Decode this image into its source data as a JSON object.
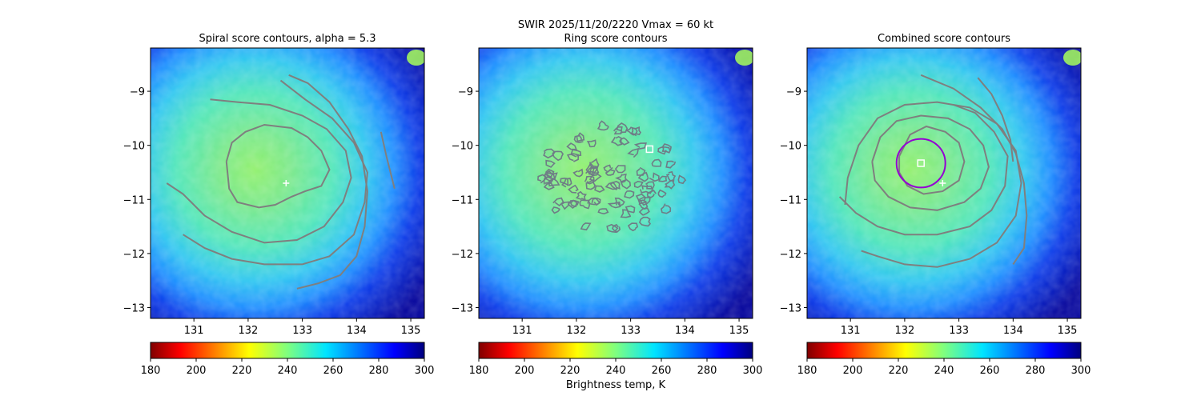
{
  "suptitle_line1": "SWIR  2025/11/20/2220    Vmax = 60 kt",
  "colorbar_label": "Brightness temp, K",
  "colormap": "jet_r",
  "colors": {
    "contour": "#7f7f7f",
    "ring_contour": "#6f7c86",
    "circle": "#9400d3",
    "marker": "#ffffff"
  },
  "chart_data": [
    {
      "type": "heatmap",
      "title": "Spiral score contours, alpha =  5.3",
      "xlim": [
        130.2,
        135.25
      ],
      "ylim": [
        -13.2,
        -8.2
      ],
      "xticks": [
        131,
        132,
        133,
        134,
        135
      ],
      "yticks": [
        -9,
        -10,
        -11,
        -12,
        -13
      ],
      "colorbar": {
        "min": 180,
        "max": 300,
        "ticks": [
          180,
          200,
          220,
          240,
          260,
          280,
          300
        ]
      },
      "contours": [
        [
          [
            131.6,
            -10.3
          ],
          [
            131.7,
            -9.95
          ],
          [
            131.95,
            -9.75
          ],
          [
            132.3,
            -9.62
          ],
          [
            132.8,
            -9.68
          ],
          [
            133.1,
            -9.85
          ],
          [
            133.35,
            -10.1
          ],
          [
            133.5,
            -10.45
          ],
          [
            133.35,
            -10.75
          ],
          [
            133.05,
            -10.85
          ],
          [
            132.8,
            -10.95
          ],
          [
            132.5,
            -11.1
          ],
          [
            132.2,
            -11.15
          ],
          [
            131.8,
            -11.05
          ],
          [
            131.65,
            -10.8
          ],
          [
            131.6,
            -10.3
          ]
        ],
        [
          [
            130.5,
            -10.7
          ],
          [
            130.8,
            -10.9
          ],
          [
            131.2,
            -11.3
          ],
          [
            131.7,
            -11.6
          ],
          [
            132.3,
            -11.8
          ],
          [
            132.9,
            -11.75
          ],
          [
            133.4,
            -11.5
          ],
          [
            133.75,
            -11.05
          ],
          [
            133.9,
            -10.6
          ],
          [
            133.8,
            -10.1
          ],
          [
            133.45,
            -9.7
          ],
          [
            133.0,
            -9.45
          ],
          [
            132.4,
            -9.25
          ],
          [
            131.8,
            -9.2
          ],
          [
            131.3,
            -9.15
          ]
        ],
        [
          [
            130.8,
            -11.65
          ],
          [
            131.2,
            -11.9
          ],
          [
            131.7,
            -12.1
          ],
          [
            132.3,
            -12.2
          ],
          [
            133.0,
            -12.2
          ],
          [
            133.5,
            -12.05
          ],
          [
            133.95,
            -11.65
          ],
          [
            134.15,
            -11.05
          ],
          [
            134.2,
            -10.5
          ],
          [
            133.95,
            -9.95
          ],
          [
            133.55,
            -9.5
          ],
          [
            133.05,
            -9.15
          ],
          [
            132.6,
            -8.8
          ]
        ],
        [
          [
            132.9,
            -12.65
          ],
          [
            133.3,
            -12.55
          ],
          [
            133.7,
            -12.4
          ],
          [
            134.0,
            -12.05
          ],
          [
            134.15,
            -11.5
          ],
          [
            134.2,
            -10.85
          ],
          [
            134.1,
            -10.2
          ],
          [
            133.85,
            -9.7
          ],
          [
            133.5,
            -9.2
          ],
          [
            133.1,
            -8.85
          ],
          [
            132.75,
            -8.7
          ]
        ],
        [
          [
            134.45,
            -9.75
          ],
          [
            134.55,
            -10.2
          ],
          [
            134.65,
            -10.6
          ],
          [
            134.7,
            -10.8
          ]
        ]
      ],
      "markers": [
        {
          "type": "plus",
          "x": 132.7,
          "y": -10.7
        }
      ]
    },
    {
      "type": "heatmap",
      "title": "Ring score contours",
      "xlim": [
        130.2,
        135.25
      ],
      "ylim": [
        -13.2,
        -8.2
      ],
      "xticks": [
        131,
        132,
        133,
        134,
        135
      ],
      "yticks": [
        -9,
        -10,
        -11,
        -12,
        -13
      ],
      "colorbar": {
        "min": 180,
        "max": 300,
        "ticks": [
          180,
          200,
          220,
          240,
          260,
          280,
          300
        ]
      },
      "ring_region": {
        "cx": 132.6,
        "cy": -10.6,
        "rx": 1.35,
        "ry": 1.0
      },
      "markers": [
        {
          "type": "square",
          "x": 133.35,
          "y": -10.07
        }
      ]
    },
    {
      "type": "heatmap",
      "title": "Combined score contours",
      "xlim": [
        130.2,
        135.25
      ],
      "ylim": [
        -13.2,
        -8.2
      ],
      "xticks": [
        131,
        132,
        133,
        134,
        135
      ],
      "yticks": [
        -9,
        -10,
        -11,
        -12,
        -13
      ],
      "colorbar": {
        "min": 180,
        "max": 300,
        "ticks": [
          180,
          200,
          220,
          240,
          260,
          280,
          300
        ]
      },
      "contours": [
        [
          [
            131.9,
            -10.2
          ],
          [
            132.1,
            -9.8
          ],
          [
            132.4,
            -9.65
          ],
          [
            132.75,
            -9.75
          ],
          [
            133.0,
            -9.95
          ],
          [
            133.1,
            -10.3
          ],
          [
            133.0,
            -10.65
          ],
          [
            132.7,
            -10.85
          ],
          [
            132.35,
            -10.9
          ],
          [
            132.05,
            -10.75
          ],
          [
            131.9,
            -10.5
          ],
          [
            131.9,
            -10.2
          ]
        ],
        [
          [
            131.4,
            -10.3
          ],
          [
            131.55,
            -9.85
          ],
          [
            131.85,
            -9.55
          ],
          [
            132.3,
            -9.45
          ],
          [
            132.8,
            -9.5
          ],
          [
            133.2,
            -9.7
          ],
          [
            133.45,
            -10.0
          ],
          [
            133.55,
            -10.4
          ],
          [
            133.4,
            -10.8
          ],
          [
            133.1,
            -11.05
          ],
          [
            132.6,
            -11.2
          ],
          [
            132.1,
            -11.15
          ],
          [
            131.7,
            -10.95
          ],
          [
            131.45,
            -10.65
          ],
          [
            131.4,
            -10.3
          ]
        ],
        [
          [
            130.8,
            -10.95
          ],
          [
            131.1,
            -11.25
          ],
          [
            131.5,
            -11.5
          ],
          [
            132.0,
            -11.65
          ],
          [
            132.6,
            -11.65
          ],
          [
            133.2,
            -11.5
          ],
          [
            133.6,
            -11.2
          ],
          [
            133.85,
            -10.75
          ],
          [
            133.9,
            -10.2
          ],
          [
            133.65,
            -9.75
          ],
          [
            133.3,
            -9.4
          ],
          [
            132.9,
            -9.25
          ]
        ],
        [
          [
            130.9,
            -11.1
          ],
          [
            130.95,
            -10.6
          ],
          [
            131.15,
            -10.0
          ],
          [
            131.5,
            -9.5
          ],
          [
            132.0,
            -9.25
          ],
          [
            132.6,
            -9.2
          ],
          [
            133.2,
            -9.3
          ],
          [
            133.7,
            -9.6
          ],
          [
            134.05,
            -10.1
          ],
          [
            134.15,
            -10.7
          ],
          [
            134.05,
            -11.3
          ],
          [
            133.7,
            -11.8
          ],
          [
            133.2,
            -12.1
          ],
          [
            132.6,
            -12.25
          ],
          [
            132.0,
            -12.2
          ],
          [
            131.5,
            -12.05
          ],
          [
            131.2,
            -11.95
          ]
        ],
        [
          [
            132.3,
            -8.7
          ],
          [
            132.9,
            -8.95
          ],
          [
            133.4,
            -9.3
          ],
          [
            133.8,
            -9.7
          ],
          [
            134.05,
            -10.15
          ],
          [
            134.2,
            -10.7
          ],
          [
            134.25,
            -11.3
          ],
          [
            134.2,
            -11.9
          ],
          [
            134.0,
            -12.2
          ]
        ],
        [
          [
            133.35,
            -8.75
          ],
          [
            133.6,
            -9.05
          ],
          [
            133.8,
            -9.45
          ],
          [
            133.95,
            -9.9
          ],
          [
            134.0,
            -10.3
          ]
        ]
      ],
      "circle": {
        "cx": 132.3,
        "cy": -10.33,
        "r": 0.45
      },
      "markers": [
        {
          "type": "square",
          "x": 132.3,
          "y": -10.33
        },
        {
          "type": "plus",
          "x": 132.7,
          "y": -10.7
        }
      ]
    }
  ]
}
